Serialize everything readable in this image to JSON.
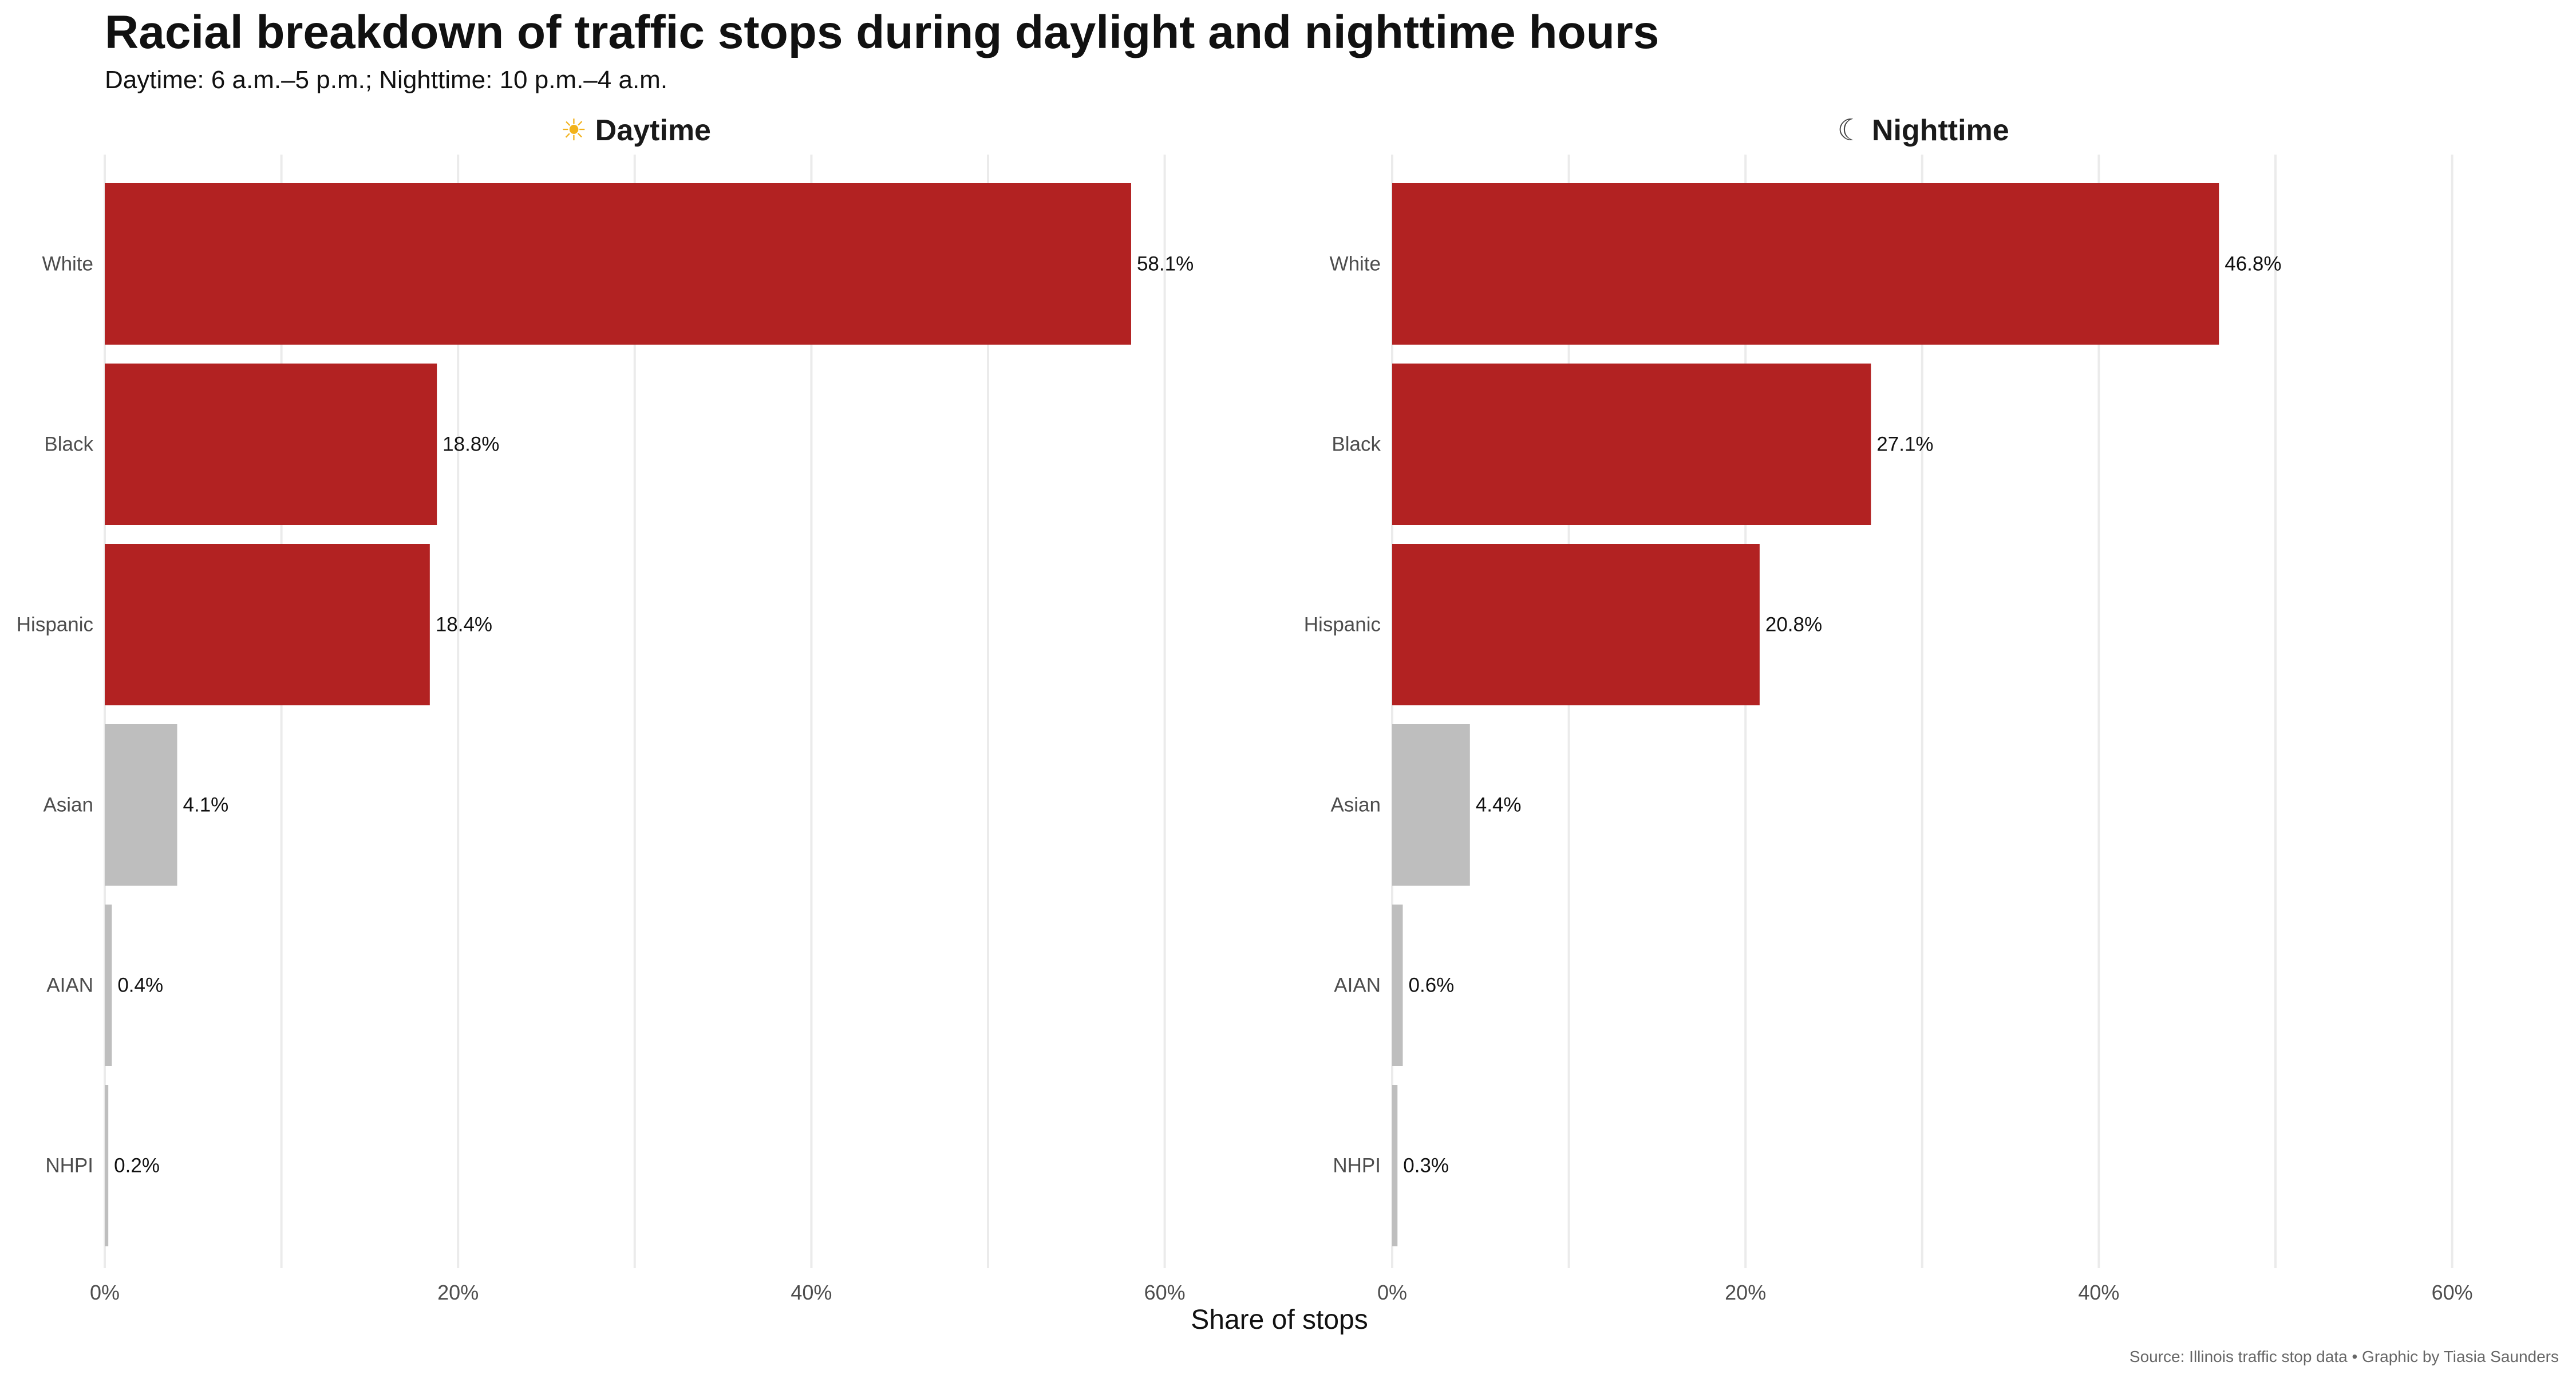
{
  "title": "Racial breakdown of traffic stops during daylight and nighttime hours",
  "subtitle": "Daytime: 6 a.m.–5 p.m.; Nighttime: 10 p.m.–4 a.m.",
  "caption": "Source: Illinois traffic stop data • Graphic by Tiasia Saunders",
  "chart_data": {
    "type": "bar",
    "orientation": "horizontal",
    "xlabel": "Share of stops",
    "xlim": [
      0,
      0.6
    ],
    "ticks": [
      0,
      0.2,
      0.4,
      0.6
    ],
    "tick_labels": [
      "0%",
      "20%",
      "40%",
      "60%"
    ],
    "grid": true,
    "categories": [
      "White",
      "Black",
      "Hispanic",
      "Asian",
      "AIAN",
      "NHPI"
    ],
    "highlight_color": "#b22222",
    "muted_color": "#bebebe",
    "highlight": [
      true,
      true,
      true,
      false,
      false,
      false
    ],
    "facets": [
      {
        "icon": "sun-icon",
        "icon_glyph": "☀",
        "name": "Daytime",
        "values": [
          0.581,
          0.188,
          0.184,
          0.041,
          0.004,
          0.002
        ],
        "labels": [
          "58.1%",
          "18.8%",
          "18.4%",
          "4.1%",
          "0.4%",
          "0.2%"
        ]
      },
      {
        "icon": "moon-icon",
        "icon_glyph": "☾",
        "name": "Nighttime",
        "values": [
          0.468,
          0.271,
          0.208,
          0.044,
          0.006,
          0.003
        ],
        "labels": [
          "46.8%",
          "27.1%",
          "20.8%",
          "4.4%",
          "0.6%",
          "0.3%"
        ]
      }
    ]
  }
}
